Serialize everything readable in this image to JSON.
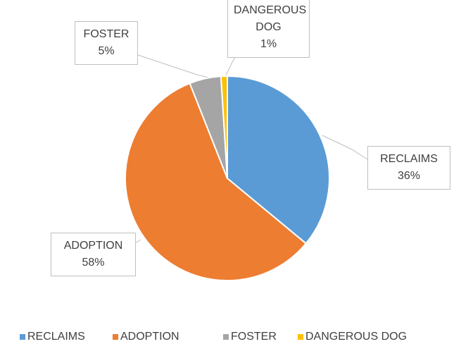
{
  "chart_data": {
    "type": "pie",
    "categories": [
      "RECLAIMS",
      "ADOPTION",
      "FOSTER",
      "DANGEROUS DOG"
    ],
    "values": [
      36,
      58,
      5,
      1
    ],
    "value_labels": [
      "36%",
      "58%",
      "5%",
      "1%"
    ],
    "colors": [
      "#5b9bd5",
      "#ed7d31",
      "#a5a5a5",
      "#ffc000"
    ],
    "legend": "bottom"
  }
}
